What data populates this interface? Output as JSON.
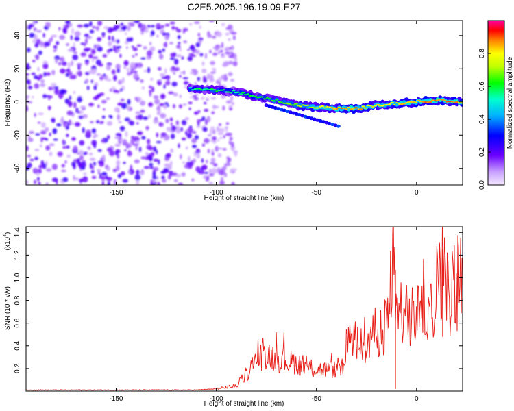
{
  "title": "C2E5.2025.196.19.09.E27",
  "chart_data": [
    {
      "type": "heatmap",
      "xlabel": "Height of straight line (km)",
      "ylabel": "Frequency (Hz)",
      "xlim": [
        -195,
        23
      ],
      "ylim": [
        -50,
        49
      ],
      "xticks": [
        -150,
        -100,
        -50,
        0
      ],
      "yticks": [
        -40,
        -20,
        0,
        20,
        40
      ],
      "colorbar": {
        "label": "Normalized spectral amplitude",
        "range": [
          0,
          1
        ],
        "ticks": [
          0,
          0.2,
          0.4,
          0.6,
          0.8
        ],
        "tick_labels": [
          "0.0",
          "0.2",
          "0.4",
          "0.6",
          "0.8"
        ],
        "colormap": "rainbow"
      },
      "noise_region": {
        "x_range": [
          -195,
          -100
        ],
        "amplitude_range": [
          0.05,
          0.25
        ]
      },
      "echo_trace": {
        "x": [
          -113,
          -100,
          -90,
          -80,
          -70,
          -60,
          -50,
          -40,
          -30,
          -20,
          -10,
          0,
          10,
          23
        ],
        "frequency": [
          8,
          7,
          6,
          3,
          1,
          -2,
          -3,
          -4,
          -4,
          -2,
          -1,
          0,
          1,
          0
        ],
        "amplitude": [
          0.55,
          0.6,
          0.55,
          0.6,
          0.65,
          0.7,
          0.75,
          0.85,
          0.85,
          0.8,
          0.8,
          0.85,
          0.9,
          0.85
        ]
      }
    },
    {
      "type": "line",
      "xlabel": "Height of straight line (km)",
      "ylabel": "SNR (10 * v/v)",
      "scale_label": "(x10",
      "scale_exponent": "4",
      "xlim": [
        -195,
        23
      ],
      "ylim": [
        0,
        1.45
      ],
      "xticks": [
        -150,
        -100,
        -50,
        0
      ],
      "yticks": [
        0.2,
        0.4,
        0.6,
        0.8,
        1.0,
        1.2,
        1.4
      ],
      "ytick_labels": [
        "0.2",
        "0.4",
        "0.6",
        "0.8",
        "1.0",
        "1.2",
        "1.4"
      ],
      "series": [
        {
          "color": "#e8201a",
          "x": [
            -195,
            -150,
            -110,
            -100,
            -90,
            -85,
            -80,
            -75,
            -70,
            -65,
            -60,
            -55,
            -50,
            -45,
            -40,
            -36,
            -35,
            -30,
            -25,
            -20,
            -15,
            -11,
            -10,
            -5,
            0,
            5,
            10,
            12,
            15,
            20,
            23
          ],
          "y": [
            0.01,
            0.01,
            0.01,
            0.02,
            0.05,
            0.15,
            0.3,
            0.35,
            0.3,
            0.28,
            0.26,
            0.22,
            0.2,
            0.2,
            0.2,
            0.22,
            0.45,
            0.5,
            0.55,
            0.6,
            0.65,
            1.44,
            0.7,
            0.8,
            0.9,
            0.95,
            1.0,
            1.38,
            1.0,
            1.05,
            1.2
          ]
        }
      ]
    }
  ]
}
